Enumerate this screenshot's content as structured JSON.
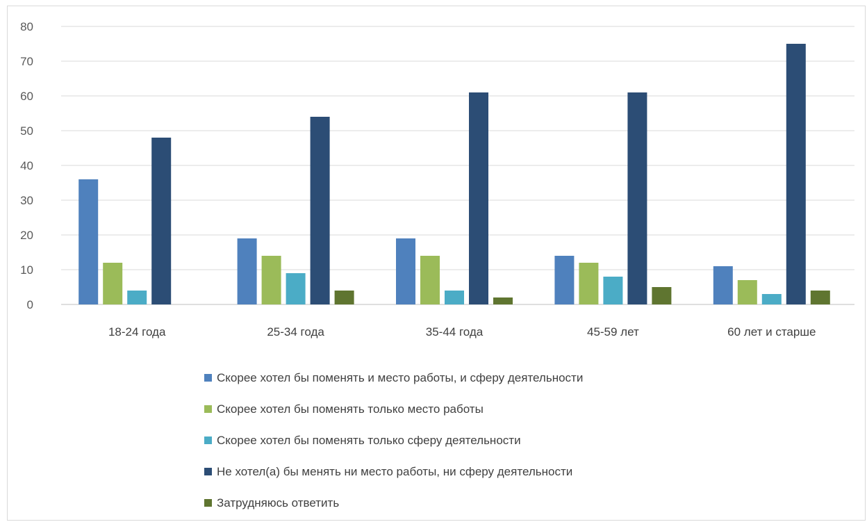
{
  "chart_data": {
    "type": "bar",
    "title": "",
    "xlabel": "",
    "ylabel": "",
    "ylim": [
      0,
      80
    ],
    "yticks": [
      0,
      10,
      20,
      30,
      40,
      50,
      60,
      70,
      80
    ],
    "grid": true,
    "legend_position": "bottom",
    "categories": [
      "18-24 года",
      "25-34 года",
      "35-44 года",
      "45-59 лет",
      "60 лет и старше"
    ],
    "series": [
      {
        "name": "Скорее хотел бы поменять и место работы, и сферу деятельности",
        "color": "#4f81bd",
        "values": [
          36,
          19,
          19,
          14,
          11
        ]
      },
      {
        "name": "Скорее хотел бы поменять только место работы",
        "color": "#9bbb59",
        "values": [
          12,
          14,
          14,
          12,
          7
        ]
      },
      {
        "name": "Скорее хотел бы поменять только сферу деятельности",
        "color": "#4bacc6",
        "values": [
          4,
          9,
          4,
          8,
          3
        ]
      },
      {
        "name": "Не хотел(а) бы менять ни место работы, ни сферу деятельности",
        "color": "#2c4d75",
        "values": [
          48,
          54,
          61,
          61,
          75
        ]
      },
      {
        "name": "Затрудняюсь ответить",
        "color": "#5f7530",
        "values": [
          0,
          4,
          2,
          5,
          4
        ]
      }
    ]
  }
}
